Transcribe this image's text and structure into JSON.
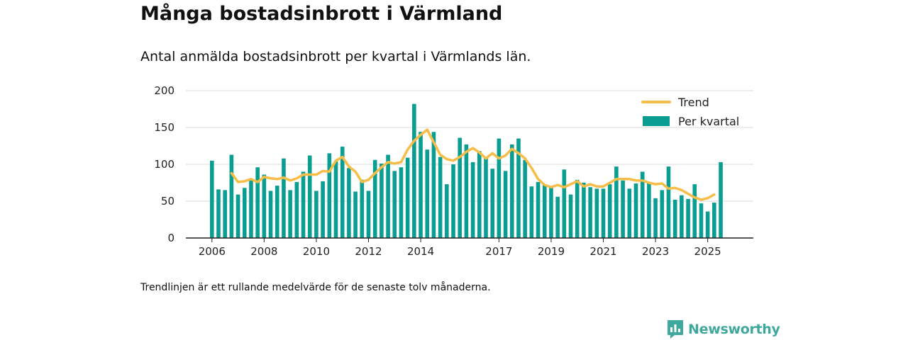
{
  "header": {
    "title": "Många bostadsinbrott i Värmland",
    "subtitle": "Antal anmälda bostadsinbrott per kvartal i Värmlands län."
  },
  "footnote": "Trendlinjen är ett rullande medelvärde för de senaste tolv månaderna.",
  "brand": {
    "name": "Newsworthy",
    "icon": "newsworthy-logo-icon",
    "color": "#3fa89c"
  },
  "colors": {
    "bars": "#0a9e92",
    "trend": "#f6bd48",
    "grid": "#d9d9d9",
    "axis": "#222222"
  },
  "chart_data": {
    "type": "bar",
    "title": "Många bostadsinbrott i Värmland",
    "xlabel": "",
    "ylabel": "",
    "ylim": [
      0,
      200
    ],
    "yticks": [
      0,
      50,
      100,
      150,
      200
    ],
    "xlim": [
      2005.0,
      2026.75
    ],
    "xticks": [
      {
        "label": "2006",
        "value": 2006.0
      },
      {
        "label": "2008",
        "value": 2008.0
      },
      {
        "label": "2010",
        "value": 2010.0
      },
      {
        "label": "2012",
        "value": 2012.0
      },
      {
        "label": "2014",
        "value": 2014.0
      },
      {
        "label": "2017",
        "value": 2017.0
      },
      {
        "label": "2019",
        "value": 2019.0
      },
      {
        "label": "2021",
        "value": 2021.0
      },
      {
        "label": "2023",
        "value": 2023.0
      },
      {
        "label": "2025",
        "value": 2025.0
      }
    ],
    "legend": {
      "position": "top-right",
      "items": [
        "Trend",
        "Per kvartal"
      ]
    },
    "start": 2006.0,
    "step": 0.25,
    "series": [
      {
        "name": "Per kvartal",
        "kind": "bar",
        "values": [
          105,
          66,
          65,
          113,
          59,
          68,
          80,
          96,
          86,
          64,
          71,
          108,
          65,
          76,
          90,
          112,
          64,
          77,
          115,
          104,
          124,
          95,
          63,
          79,
          64,
          106,
          101,
          113,
          91,
          96,
          109,
          182,
          144,
          120,
          144,
          110,
          73,
          100,
          136,
          127,
          103,
          118,
          110,
          94,
          135,
          91,
          127,
          135,
          106,
          70,
          76,
          72,
          68,
          56,
          93,
          59,
          79,
          75,
          69,
          67,
          67,
          73,
          97,
          78,
          67,
          74,
          90,
          76,
          54,
          65,
          97,
          52,
          58,
          53,
          73,
          47,
          36,
          48,
          103
        ]
      },
      {
        "name": "Trend",
        "kind": "line",
        "start_index": 3,
        "values": [
          88,
          76,
          77,
          80,
          76,
          83,
          81,
          80,
          82,
          78,
          81,
          86,
          86,
          86,
          91,
          90,
          105,
          110,
          97,
          90,
          76,
          79,
          88,
          96,
          103,
          101,
          103,
          120,
          132,
          140,
          147,
          130,
          113,
          107,
          105,
          110,
          117,
          122,
          116,
          108,
          115,
          108,
          112,
          121,
          115,
          108,
          95,
          80,
          72,
          69,
          72,
          69,
          73,
          77,
          70,
          73,
          70,
          70,
          75,
          80,
          80,
          80,
          78,
          78,
          75,
          73,
          74,
          67,
          68,
          65,
          60,
          55,
          52,
          54,
          59
        ]
      }
    ]
  }
}
